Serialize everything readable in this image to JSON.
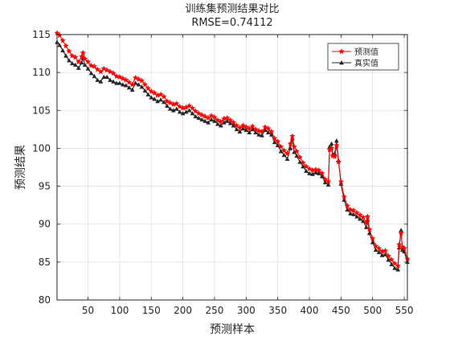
{
  "chart_data": {
    "type": "line",
    "title": "训练集预测结果对比",
    "subtitle": "RMSE=0.74112",
    "xlabel": "预测样本",
    "ylabel": "预测结果",
    "xlim": [
      1,
      555
    ],
    "ylim": [
      80,
      115
    ],
    "xticks": [
      "50",
      "100",
      "150",
      "200",
      "250",
      "300",
      "350",
      "400",
      "450",
      "500",
      "550"
    ],
    "yticks": [
      "80",
      "85",
      "90",
      "95",
      "100",
      "105",
      "110",
      "115"
    ],
    "grid": true,
    "legend_position": "top-right",
    "series": [
      {
        "name": "预测值",
        "color": "#ff0000",
        "marker": "star",
        "points": [
          [
            1,
            115.2
          ],
          [
            5,
            114.9
          ],
          [
            10,
            114.2
          ],
          [
            15,
            113.5
          ],
          [
            20,
            112.8
          ],
          [
            25,
            112.2
          ],
          [
            30,
            112.0
          ],
          [
            35,
            111.4
          ],
          [
            40,
            112.1
          ],
          [
            42,
            112.6
          ],
          [
            45,
            111.8
          ],
          [
            50,
            111.4
          ],
          [
            55,
            110.9
          ],
          [
            60,
            110.8
          ],
          [
            65,
            110.4
          ],
          [
            70,
            110.1
          ],
          [
            75,
            110.5
          ],
          [
            80,
            110.3
          ],
          [
            85,
            110.1
          ],
          [
            90,
            109.9
          ],
          [
            95,
            109.5
          ],
          [
            100,
            109.4
          ],
          [
            105,
            109.2
          ],
          [
            110,
            109.0
          ],
          [
            115,
            108.7
          ],
          [
            120,
            108.4
          ],
          [
            125,
            109.3
          ],
          [
            130,
            109.1
          ],
          [
            135,
            108.9
          ],
          [
            140,
            108.4
          ],
          [
            145,
            107.9
          ],
          [
            150,
            107.5
          ],
          [
            155,
            107.3
          ],
          [
            160,
            107.0
          ],
          [
            165,
            107.1
          ],
          [
            170,
            106.8
          ],
          [
            175,
            106.2
          ],
          [
            180,
            106.0
          ],
          [
            185,
            105.8
          ],
          [
            190,
            105.9
          ],
          [
            195,
            105.5
          ],
          [
            200,
            105.3
          ],
          [
            205,
            105.4
          ],
          [
            210,
            105.6
          ],
          [
            215,
            105.3
          ],
          [
            220,
            104.9
          ],
          [
            225,
            104.6
          ],
          [
            230,
            104.4
          ],
          [
            235,
            104.2
          ],
          [
            240,
            104.0
          ],
          [
            245,
            104.3
          ],
          [
            250,
            104.1
          ],
          [
            255,
            103.7
          ],
          [
            260,
            103.5
          ],
          [
            265,
            103.9
          ],
          [
            270,
            104.0
          ],
          [
            275,
            103.7
          ],
          [
            280,
            103.4
          ],
          [
            285,
            103.0
          ],
          [
            290,
            102.7
          ],
          [
            295,
            103.0
          ],
          [
            300,
            102.8
          ],
          [
            305,
            102.6
          ],
          [
            310,
            102.9
          ],
          [
            315,
            102.5
          ],
          [
            320,
            102.3
          ],
          [
            325,
            102.2
          ],
          [
            330,
            102.8
          ],
          [
            335,
            102.6
          ],
          [
            340,
            102.2
          ],
          [
            345,
            101.3
          ],
          [
            350,
            100.9
          ],
          [
            355,
            100.2
          ],
          [
            360,
            99.7
          ],
          [
            365,
            99.3
          ],
          [
            370,
            100.6
          ],
          [
            373,
            101.6
          ],
          [
            376,
            100.2
          ],
          [
            380,
            99.6
          ],
          [
            385,
            98.8
          ],
          [
            390,
            98.1
          ],
          [
            395,
            97.6
          ],
          [
            400,
            97.3
          ],
          [
            405,
            97.1
          ],
          [
            410,
            97.2
          ],
          [
            415,
            97.1
          ],
          [
            420,
            96.7
          ],
          [
            425,
            95.9
          ],
          [
            430,
            95.6
          ],
          [
            432,
            99.8
          ],
          [
            435,
            100.0
          ],
          [
            437,
            99.0
          ],
          [
            440,
            98.9
          ],
          [
            443,
            100.4
          ],
          [
            446,
            98.2
          ],
          [
            450,
            95.6
          ],
          [
            455,
            93.6
          ],
          [
            460,
            92.4
          ],
          [
            465,
            91.9
          ],
          [
            470,
            91.8
          ],
          [
            475,
            91.5
          ],
          [
            480,
            91.2
          ],
          [
            485,
            90.9
          ],
          [
            490,
            90.2
          ],
          [
            492,
            91.0
          ],
          [
            495,
            89.3
          ],
          [
            500,
            88.1
          ],
          [
            505,
            87.1
          ],
          [
            510,
            86.8
          ],
          [
            515,
            86.4
          ],
          [
            520,
            86.5
          ],
          [
            525,
            85.8
          ],
          [
            530,
            85.3
          ],
          [
            535,
            84.8
          ],
          [
            540,
            84.5
          ],
          [
            542,
            87.3
          ],
          [
            545,
            88.8
          ],
          [
            547,
            87.0
          ],
          [
            550,
            86.8
          ],
          [
            555,
            85.4
          ]
        ]
      },
      {
        "name": "真实值",
        "color": "#262626",
        "marker": "triangle",
        "points": [
          [
            1,
            114.0
          ],
          [
            5,
            113.6
          ],
          [
            10,
            112.9
          ],
          [
            15,
            112.2
          ],
          [
            20,
            111.6
          ],
          [
            25,
            111.2
          ],
          [
            30,
            111.0
          ],
          [
            35,
            110.6
          ],
          [
            40,
            111.3
          ],
          [
            42,
            111.9
          ],
          [
            45,
            111.0
          ],
          [
            50,
            110.5
          ],
          [
            55,
            109.9
          ],
          [
            60,
            109.5
          ],
          [
            65,
            109.0
          ],
          [
            70,
            108.8
          ],
          [
            75,
            109.4
          ],
          [
            80,
            109.4
          ],
          [
            85,
            109.0
          ],
          [
            90,
            108.8
          ],
          [
            95,
            108.6
          ],
          [
            100,
            108.6
          ],
          [
            105,
            108.4
          ],
          [
            110,
            108.3
          ],
          [
            115,
            108.0
          ],
          [
            120,
            107.7
          ],
          [
            125,
            108.6
          ],
          [
            130,
            108.4
          ],
          [
            135,
            108.1
          ],
          [
            140,
            107.6
          ],
          [
            145,
            107.1
          ],
          [
            150,
            106.7
          ],
          [
            155,
            106.5
          ],
          [
            160,
            106.2
          ],
          [
            165,
            106.4
          ],
          [
            170,
            106.1
          ],
          [
            175,
            105.6
          ],
          [
            180,
            105.2
          ],
          [
            185,
            105.0
          ],
          [
            190,
            105.2
          ],
          [
            195,
            104.8
          ],
          [
            200,
            104.6
          ],
          [
            205,
            104.8
          ],
          [
            210,
            105.0
          ],
          [
            215,
            104.6
          ],
          [
            220,
            104.2
          ],
          [
            225,
            104.0
          ],
          [
            230,
            103.8
          ],
          [
            235,
            103.6
          ],
          [
            240,
            103.4
          ],
          [
            245,
            103.8
          ],
          [
            250,
            103.6
          ],
          [
            255,
            103.2
          ],
          [
            260,
            103.0
          ],
          [
            265,
            103.4
          ],
          [
            270,
            103.6
          ],
          [
            275,
            103.3
          ],
          [
            280,
            103.0
          ],
          [
            285,
            102.5
          ],
          [
            290,
            102.2
          ],
          [
            295,
            102.6
          ],
          [
            300,
            102.4
          ],
          [
            305,
            102.1
          ],
          [
            310,
            102.5
          ],
          [
            315,
            102.1
          ],
          [
            320,
            101.8
          ],
          [
            325,
            101.7
          ],
          [
            330,
            102.4
          ],
          [
            335,
            102.1
          ],
          [
            340,
            101.8
          ],
          [
            345,
            100.8
          ],
          [
            350,
            100.4
          ],
          [
            355,
            99.6
          ],
          [
            360,
            99.1
          ],
          [
            365,
            98.6
          ],
          [
            370,
            100.0
          ],
          [
            373,
            101.3
          ],
          [
            376,
            99.5
          ],
          [
            380,
            99.0
          ],
          [
            385,
            98.2
          ],
          [
            390,
            97.6
          ],
          [
            395,
            97.0
          ],
          [
            400,
            96.7
          ],
          [
            405,
            96.6
          ],
          [
            410,
            96.8
          ],
          [
            415,
            96.7
          ],
          [
            420,
            96.3
          ],
          [
            425,
            95.5
          ],
          [
            430,
            95.2
          ],
          [
            432,
            100.2
          ],
          [
            435,
            100.6
          ],
          [
            437,
            99.2
          ],
          [
            440,
            99.3
          ],
          [
            443,
            101.0
          ],
          [
            446,
            98.4
          ],
          [
            450,
            95.3
          ],
          [
            455,
            93.2
          ],
          [
            460,
            91.9
          ],
          [
            465,
            91.4
          ],
          [
            470,
            91.3
          ],
          [
            475,
            91.0
          ],
          [
            480,
            90.7
          ],
          [
            485,
            90.4
          ],
          [
            490,
            89.6
          ],
          [
            492,
            90.6
          ],
          [
            495,
            88.8
          ],
          [
            500,
            87.6
          ],
          [
            505,
            86.6
          ],
          [
            510,
            86.3
          ],
          [
            515,
            85.9
          ],
          [
            520,
            86.0
          ],
          [
            525,
            85.3
          ],
          [
            530,
            84.7
          ],
          [
            535,
            84.2
          ],
          [
            540,
            84.0
          ],
          [
            542,
            86.9
          ],
          [
            545,
            89.2
          ],
          [
            547,
            86.6
          ],
          [
            550,
            86.4
          ],
          [
            555,
            85.0
          ]
        ]
      }
    ]
  }
}
